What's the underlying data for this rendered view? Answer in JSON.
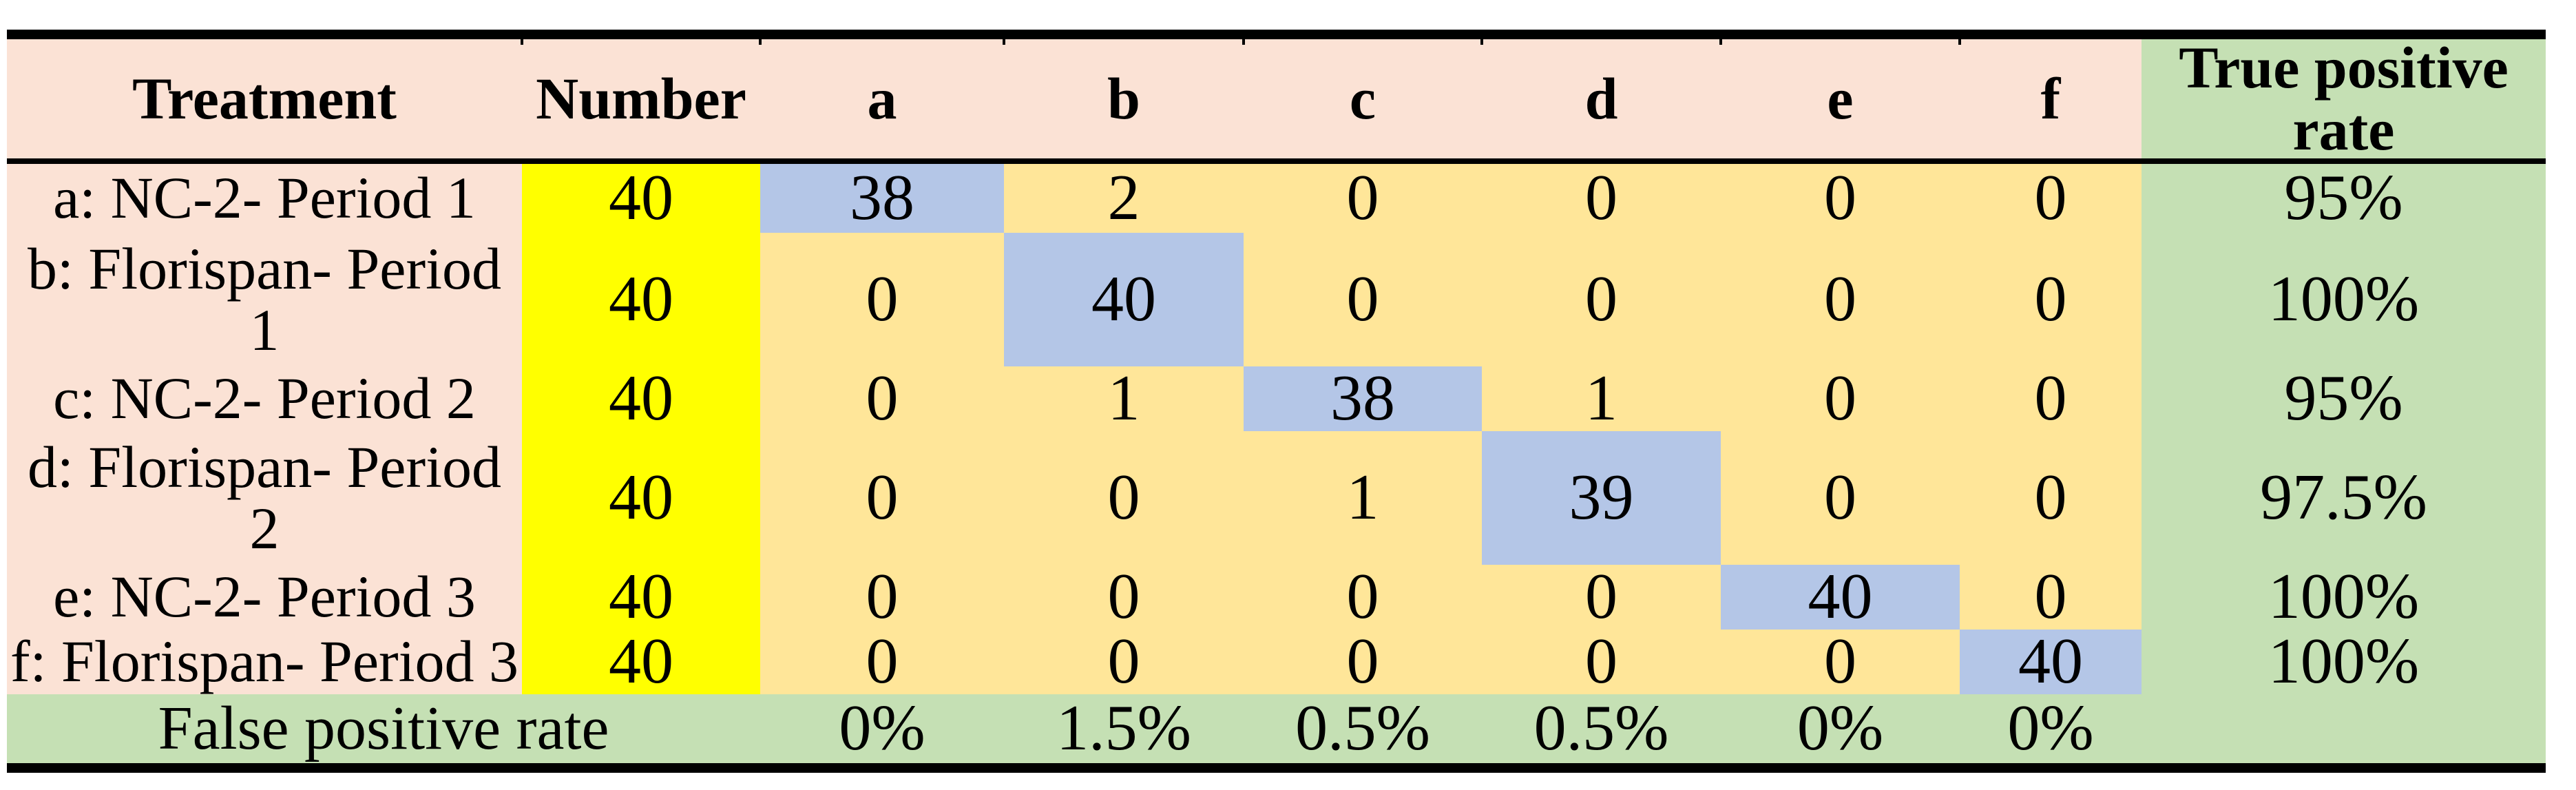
{
  "palette": {
    "header_fill": "#FBE2D5",
    "number_fill": "#FFFF00",
    "matrix_fill": "#FFE699",
    "diagonal_fill": "#B4C6E7",
    "rate_fill": "#C5E0B4",
    "border": "#000000",
    "background": "#FFFFFF"
  },
  "table": {
    "header": {
      "treatment": "Treatment",
      "number": "Number",
      "classes": [
        "a",
        "b",
        "c",
        "d",
        "e",
        "f"
      ],
      "true_positive_rate": "True positive rate"
    },
    "rows": [
      {
        "label": "a: NC-2- Period 1",
        "label_lines": [
          "a: NC-2- Period 1"
        ],
        "number": "40",
        "counts": [
          "38",
          "2",
          "0",
          "0",
          "0",
          "0"
        ],
        "diagonal_index": 0,
        "true_positive_rate": "95%"
      },
      {
        "label": "b: Florispan- Period 1",
        "label_lines": [
          "b: Florispan- Period",
          "1"
        ],
        "number": "40",
        "counts": [
          "0",
          "40",
          "0",
          "0",
          "0",
          "0"
        ],
        "diagonal_index": 1,
        "true_positive_rate": "100%"
      },
      {
        "label": "c: NC-2- Period 2",
        "label_lines": [
          "c: NC-2- Period 2"
        ],
        "number": "40",
        "counts": [
          "0",
          "1",
          "38",
          "1",
          "0",
          "0"
        ],
        "diagonal_index": 2,
        "true_positive_rate": "95%"
      },
      {
        "label": "d: Florispan- Period 2",
        "label_lines": [
          "d: Florispan- Period",
          "2"
        ],
        "number": "40",
        "counts": [
          "0",
          "0",
          "1",
          "39",
          "0",
          "0"
        ],
        "diagonal_index": 3,
        "true_positive_rate": "97.5%"
      },
      {
        "label": "e: NC-2- Period 3",
        "label_lines": [
          "e: NC-2- Period 3"
        ],
        "number": "40",
        "counts": [
          "0",
          "0",
          "0",
          "0",
          "40",
          "0"
        ],
        "diagonal_index": 4,
        "true_positive_rate": "100%"
      },
      {
        "label": "f: Florispan- Period 3",
        "label_lines": [
          "f: Florispan- Period 3"
        ],
        "number": "40",
        "counts": [
          "0",
          "0",
          "0",
          "0",
          "0",
          "40"
        ],
        "diagonal_index": 5,
        "true_positive_rate": "100%"
      }
    ],
    "footer": {
      "label": "False positive rate",
      "values": [
        "0%",
        "1.5%",
        "0.5%",
        "0.5%",
        "0%",
        "0%"
      ],
      "true_positive_rate": ""
    }
  }
}
